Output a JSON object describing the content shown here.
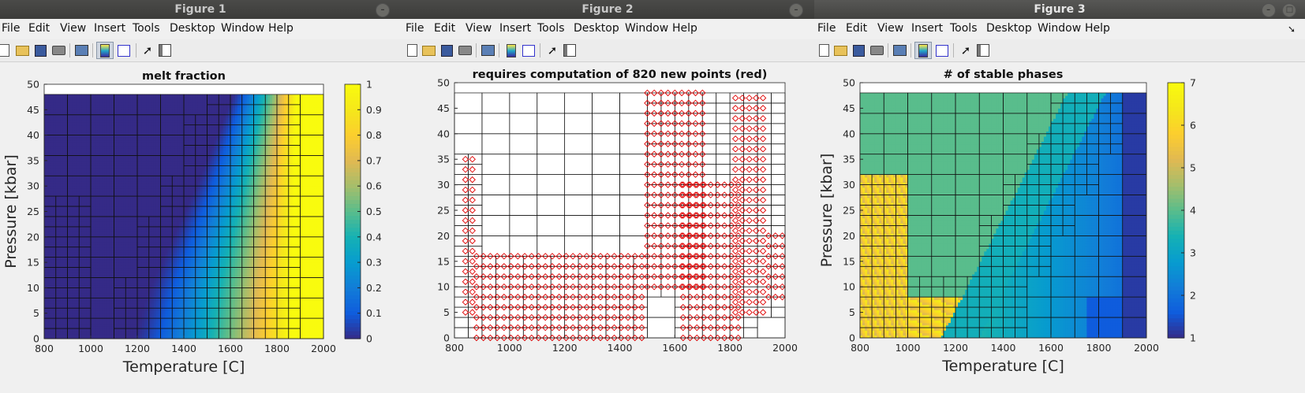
{
  "menu": [
    "File",
    "Edit",
    "View",
    "Insert",
    "Tools",
    "Desktop",
    "Window",
    "Help"
  ],
  "icons": [
    "new-file-icon",
    "open-folder-icon",
    "save-icon",
    "print-icon",
    "link-plot-icon",
    "insert-colorbar-icon",
    "insert-legend-icon",
    "pointer-icon",
    "property-inspector-icon"
  ],
  "windows": [
    {
      "title": "Figure 1",
      "plot": {
        "title": "melt fraction",
        "xlabel": "Temperature [C]",
        "ylabel": "Pressure [kbar]",
        "xticks": [
          "800",
          "1000",
          "1200",
          "1400",
          "1600",
          "1800",
          "2000"
        ],
        "yticks": [
          "0",
          "5",
          "10",
          "15",
          "20",
          "25",
          "30",
          "35",
          "40",
          "45",
          "50"
        ],
        "colorbar_ticks": [
          "0",
          "0.1",
          "0.2",
          "0.3",
          "0.4",
          "0.5",
          "0.6",
          "0.7",
          "0.8",
          "0.9",
          "1"
        ]
      }
    },
    {
      "title": "Figure 2",
      "plot": {
        "title": "requires computation of 820 new points (red)",
        "xlabel": "",
        "ylabel": "",
        "xticks": [
          "800",
          "1000",
          "1200",
          "1400",
          "1600",
          "1800",
          "2000"
        ],
        "yticks": [
          "0",
          "5",
          "10",
          "15",
          "20",
          "25",
          "30",
          "35",
          "40",
          "45",
          "50"
        ],
        "colorbar_ticks": []
      }
    },
    {
      "title": "Figure 3",
      "plot": {
        "title": "# of stable phases",
        "xlabel": "Temperature [C]",
        "ylabel": "Pressure [kbar]",
        "xticks": [
          "800",
          "1000",
          "1200",
          "1400",
          "1600",
          "1800",
          "2000"
        ],
        "yticks": [
          "0",
          "5",
          "10",
          "15",
          "20",
          "25",
          "30",
          "35",
          "40",
          "45",
          "50"
        ],
        "colorbar_ticks": [
          "1",
          "2",
          "3",
          "4",
          "5",
          "6",
          "7"
        ]
      }
    }
  ],
  "chart_data": [
    {
      "type": "heatmap",
      "title": "melt fraction",
      "xlabel": "Temperature [C]",
      "ylabel": "Pressure [kbar]",
      "xlim": [
        800,
        2000
      ],
      "ylim": [
        0,
        50
      ],
      "grid_extent": {
        "x": [
          800,
          2000
        ],
        "y": [
          0,
          48
        ]
      },
      "clim": [
        0,
        1
      ],
      "colormap": "parula",
      "legend": "colorbar right",
      "melt_onset": {
        "P": [
          0,
          10,
          20,
          30,
          40,
          48
        ],
        "T": [
          1180,
          1250,
          1350,
          1450,
          1540,
          1610
        ]
      },
      "complete_melt": {
        "P": [
          0,
          10,
          20,
          30,
          40,
          48
        ],
        "T": [
          1860,
          1865,
          1870,
          1875,
          1880,
          1885
        ]
      }
    },
    {
      "type": "scatter",
      "title": "requires computation of 820 new points (red)",
      "xlim": [
        800,
        2000
      ],
      "ylim": [
        0,
        50
      ],
      "marker": "diamond",
      "marker_color": "#e00000",
      "point_count": 820,
      "bands": [
        {
          "x_range": [
            840,
            880
          ],
          "y_range": [
            5,
            36
          ]
        },
        {
          "x_range": [
            880,
            1500
          ],
          "y_range": [
            0,
            17
          ]
        },
        {
          "x_range": [
            1500,
            1710
          ],
          "y_range": [
            10,
            48
          ]
        },
        {
          "x_range": [
            1630,
            1840
          ],
          "y_range": [
            0,
            30
          ]
        },
        {
          "x_range": [
            1820,
            1940
          ],
          "y_range": [
            5,
            48
          ]
        },
        {
          "x_range": [
            1940,
            1990
          ],
          "y_range": [
            8,
            20
          ]
        }
      ]
    },
    {
      "type": "heatmap",
      "title": "# of stable phases",
      "xlabel": "Temperature [C]",
      "ylabel": "Pressure [kbar]",
      "xlim": [
        800,
        2000
      ],
      "ylim": [
        0,
        50
      ],
      "grid_extent": {
        "x": [
          800,
          2000
        ],
        "y": [
          0,
          48
        ]
      },
      "clim": [
        1,
        7
      ],
      "colormap": "parula",
      "legend": "colorbar right",
      "dominant_values": [
        4,
        3,
        2,
        1,
        5,
        6
      ]
    }
  ],
  "colors": {
    "parula_low": "#352a87",
    "parula_mid": "#14b7a8",
    "parula_high": "#f9fb0e",
    "marker": "#e00000",
    "mesh": "#000000",
    "titlebar": "#3c3c3a",
    "close_button": "#e9541f"
  }
}
